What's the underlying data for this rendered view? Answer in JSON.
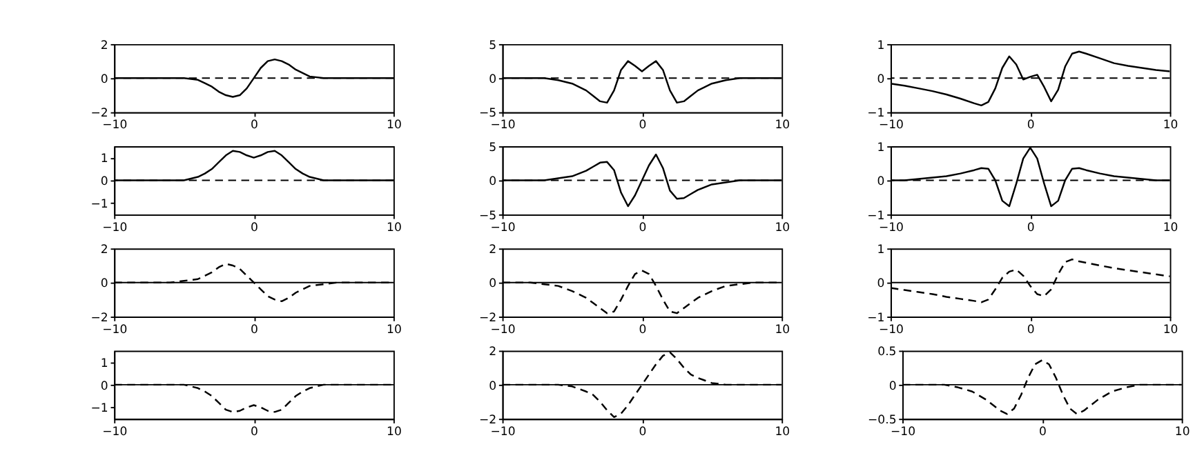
{
  "chart_data": [
    {
      "type": "line",
      "x": [
        -10,
        -9,
        -8,
        -7,
        -6,
        -5,
        -4,
        -3.5,
        -3,
        -2.5,
        -2,
        -1.5,
        -1,
        -0.5,
        0,
        0.5,
        1,
        1.5,
        2,
        2.5,
        3,
        3.5,
        4,
        5,
        6,
        7,
        8,
        9,
        10
      ],
      "series": [
        {
          "color": "#000000",
          "values": [
            0,
            0,
            0,
            0,
            0,
            0,
            -0.1,
            -0.3,
            -0.5,
            -0.8,
            -1.0,
            -1.1,
            -1.0,
            -0.6,
            0,
            0.6,
            1.0,
            1.1,
            1.0,
            0.8,
            0.5,
            0.3,
            0.1,
            0,
            0,
            0,
            0,
            0,
            0
          ]
        }
      ],
      "line_style": "solid",
      "xlim": [
        -10,
        10
      ],
      "xticks": [
        -10,
        0,
        10
      ],
      "ylim": [
        -2,
        2
      ],
      "yticks": [
        -2,
        0,
        2
      ],
      "ref_lines": [
        {
          "axis": "y",
          "value": 0,
          "color": "#000000",
          "line_style": "dashed"
        }
      ]
    },
    {
      "type": "line",
      "x": [
        -10,
        -9,
        -8,
        -7,
        -6,
        -5,
        -4,
        -3.5,
        -3,
        -2.5,
        -2,
        -1.5,
        -1,
        -0.5,
        0,
        0.5,
        1,
        1.5,
        2,
        2.5,
        3,
        3.5,
        4,
        5,
        6,
        7,
        8,
        9,
        10
      ],
      "series": [
        {
          "color": "#000000",
          "values": [
            0,
            0,
            0,
            0,
            -0.3,
            -0.8,
            -1.8,
            -2.6,
            -3.4,
            -3.6,
            -1.8,
            1.2,
            2.5,
            1.8,
            1.0,
            1.8,
            2.5,
            1.2,
            -1.8,
            -3.6,
            -3.4,
            -2.6,
            -1.8,
            -0.8,
            -0.3,
            0,
            0,
            0,
            0
          ]
        }
      ],
      "line_style": "solid",
      "xlim": [
        -10,
        10
      ],
      "xticks": [
        -10,
        0,
        10
      ],
      "ylim": [
        -5,
        5
      ],
      "yticks": [
        -5,
        0,
        5
      ],
      "ref_lines": [
        {
          "axis": "y",
          "value": 0,
          "color": "#000000",
          "line_style": "dashed"
        }
      ]
    },
    {
      "type": "line",
      "x": [
        -10,
        -9,
        -8,
        -7,
        -6,
        -5,
        -4,
        -3.5,
        -3,
        -2.5,
        -2,
        -1.5,
        -1,
        -0.5,
        0,
        0.5,
        1,
        1.5,
        2,
        2.5,
        3,
        3.5,
        4,
        5,
        6,
        7,
        8,
        9,
        10
      ],
      "series": [
        {
          "color": "#000000",
          "values": [
            -0.16,
            -0.22,
            -0.3,
            -0.38,
            -0.48,
            -0.6,
            -0.74,
            -0.8,
            -0.7,
            -0.3,
            0.3,
            0.64,
            0.4,
            -0.04,
            0.04,
            0.1,
            -0.26,
            -0.68,
            -0.34,
            0.34,
            0.72,
            0.78,
            0.72,
            0.58,
            0.44,
            0.36,
            0.3,
            0.24,
            0.2
          ]
        }
      ],
      "line_style": "solid",
      "xlim": [
        -10,
        10
      ],
      "xticks": [
        -10,
        0,
        10
      ],
      "ylim": [
        -1,
        1
      ],
      "yticks": [
        -1,
        0,
        1
      ],
      "ref_lines": [
        {
          "axis": "y",
          "value": 0,
          "color": "#000000",
          "line_style": "dashed"
        }
      ]
    },
    {
      "type": "line",
      "x": [
        -10,
        -9,
        -8,
        -7,
        -6,
        -5,
        -4,
        -3.5,
        -3,
        -2.5,
        -2,
        -1.5,
        -1,
        -0.5,
        0,
        0.5,
        1,
        1.5,
        2,
        2.5,
        3,
        3.5,
        4,
        5,
        6,
        7,
        8,
        9,
        10
      ],
      "series": [
        {
          "color": "#000000",
          "values": [
            0,
            0,
            0,
            0,
            0,
            0,
            0.15,
            0.3,
            0.5,
            0.8,
            1.1,
            1.3,
            1.25,
            1.1,
            1.0,
            1.1,
            1.25,
            1.3,
            1.1,
            0.8,
            0.5,
            0.3,
            0.15,
            0,
            0,
            0,
            0,
            0,
            0
          ]
        }
      ],
      "line_style": "solid",
      "xlim": [
        -10,
        10
      ],
      "xticks": [
        -10,
        0,
        10
      ],
      "ylim": [
        -1.5,
        1.5
      ],
      "yticks": [
        -1,
        0,
        1
      ],
      "ref_lines": [
        {
          "axis": "y",
          "value": 0,
          "color": "#000000",
          "line_style": "dashed"
        }
      ]
    },
    {
      "type": "line",
      "x": [
        -10,
        -9,
        -8,
        -7,
        -6,
        -5,
        -4,
        -3.5,
        -3,
        -2.5,
        -2,
        -1.5,
        -1,
        -0.5,
        0,
        0.5,
        1,
        1.5,
        2,
        2.5,
        3,
        3.5,
        4,
        5,
        6,
        7,
        8,
        9,
        10
      ],
      "series": [
        {
          "color": "#000000",
          "values": [
            0,
            0,
            0,
            0,
            0.3,
            0.6,
            1.4,
            2.0,
            2.6,
            2.7,
            1.5,
            -1.8,
            -3.8,
            -2.2,
            0,
            2.2,
            3.8,
            1.8,
            -1.5,
            -2.7,
            -2.6,
            -2.0,
            -1.4,
            -0.6,
            -0.3,
            0,
            0,
            0,
            0
          ]
        }
      ],
      "line_style": "solid",
      "xlim": [
        -10,
        10
      ],
      "xticks": [
        -10,
        0,
        10
      ],
      "ylim": [
        -5,
        5
      ],
      "yticks": [
        -5,
        0,
        5
      ],
      "ref_lines": [
        {
          "axis": "y",
          "value": 0,
          "color": "#000000",
          "line_style": "dashed"
        }
      ]
    },
    {
      "type": "line",
      "x": [
        -10,
        -9,
        -8,
        -7,
        -6,
        -5,
        -4,
        -3.5,
        -3,
        -2.5,
        -2,
        -1.5,
        -1,
        -0.5,
        0,
        0.5,
        1,
        1.5,
        2,
        2.5,
        3,
        3.5,
        4,
        5,
        6,
        7,
        8,
        9,
        10
      ],
      "series": [
        {
          "color": "#000000",
          "values": [
            0,
            0,
            0.04,
            0.08,
            0.12,
            0.2,
            0.3,
            0.36,
            0.34,
            0,
            -0.6,
            -0.76,
            -0.1,
            0.64,
            0.96,
            0.64,
            -0.1,
            -0.76,
            -0.6,
            0,
            0.34,
            0.36,
            0.3,
            0.2,
            0.12,
            0.08,
            0.04,
            0,
            0
          ]
        }
      ],
      "line_style": "solid",
      "xlim": [
        -10,
        10
      ],
      "xticks": [
        -10,
        0,
        10
      ],
      "ylim": [
        -1,
        1
      ],
      "yticks": [
        -1,
        0,
        1
      ],
      "ref_lines": [
        {
          "axis": "y",
          "value": 0,
          "color": "#000000",
          "line_style": "dashed"
        }
      ]
    },
    {
      "type": "line",
      "x": [
        -10,
        -9,
        -8,
        -7,
        -6,
        -5,
        -4,
        -3.5,
        -3,
        -2.5,
        -2,
        -1.5,
        -1,
        -0.5,
        0,
        0.5,
        1,
        1.5,
        2,
        2.5,
        3,
        3.5,
        4,
        5,
        6,
        7,
        8,
        9,
        10
      ],
      "series": [
        {
          "color": "#000000",
          "values": [
            0,
            0,
            0,
            0,
            0,
            0.1,
            0.2,
            0.4,
            0.6,
            0.9,
            1.1,
            1.0,
            0.8,
            0.4,
            0,
            -0.4,
            -0.8,
            -1.0,
            -1.1,
            -0.9,
            -0.6,
            -0.4,
            -0.2,
            -0.1,
            0,
            0,
            0,
            0,
            0
          ]
        }
      ],
      "line_style": "dashed",
      "xlim": [
        -10,
        10
      ],
      "xticks": [
        -10,
        0,
        10
      ],
      "ylim": [
        -2,
        2
      ],
      "yticks": [
        -2,
        0,
        2
      ],
      "ref_lines": [
        {
          "axis": "y",
          "value": 0,
          "color": "#000000",
          "line_style": "solid"
        }
      ]
    },
    {
      "type": "line",
      "x": [
        -10,
        -9,
        -8,
        -7,
        -6,
        -5,
        -4,
        -3.5,
        -3,
        -2.5,
        -2,
        -1.5,
        -1,
        -0.5,
        0,
        0.5,
        1,
        1.5,
        2,
        2.5,
        3,
        3.5,
        4,
        5,
        6,
        7,
        8,
        9,
        10
      ],
      "series": [
        {
          "color": "#000000",
          "values": [
            0,
            0,
            0,
            -0.1,
            -0.2,
            -0.5,
            -0.9,
            -1.2,
            -1.5,
            -1.8,
            -1.7,
            -1.0,
            -0.2,
            0.5,
            0.7,
            0.5,
            -0.2,
            -1.0,
            -1.7,
            -1.8,
            -1.5,
            -1.2,
            -0.9,
            -0.5,
            -0.2,
            -0.1,
            0,
            0,
            0
          ]
        }
      ],
      "line_style": "dashed",
      "xlim": [
        -10,
        10
      ],
      "xticks": [
        -10,
        0,
        10
      ],
      "ylim": [
        -2,
        2
      ],
      "yticks": [
        -2,
        0,
        2
      ],
      "ref_lines": [
        {
          "axis": "y",
          "value": 0,
          "color": "#000000",
          "line_style": "solid"
        }
      ]
    },
    {
      "type": "line",
      "x": [
        -10,
        -9,
        -8,
        -7,
        -6,
        -5,
        -4,
        -3.5,
        -3,
        -2.5,
        -2,
        -1.5,
        -1,
        -0.5,
        0,
        0.5,
        1,
        1.5,
        2,
        2.5,
        3,
        3.5,
        4,
        5,
        6,
        7,
        8,
        9,
        10
      ],
      "series": [
        {
          "color": "#000000",
          "values": [
            -0.16,
            -0.22,
            -0.28,
            -0.34,
            -0.42,
            -0.48,
            -0.54,
            -0.58,
            -0.5,
            -0.2,
            0.14,
            0.32,
            0.38,
            0.2,
            -0.1,
            -0.34,
            -0.4,
            -0.2,
            0.24,
            0.6,
            0.68,
            0.62,
            0.58,
            0.5,
            0.42,
            0.36,
            0.3,
            0.24,
            0.18
          ]
        }
      ],
      "line_style": "dashed",
      "xlim": [
        -10,
        10
      ],
      "xticks": [
        -10,
        0,
        10
      ],
      "ylim": [
        -1,
        1
      ],
      "yticks": [
        -1,
        0,
        1
      ],
      "ref_lines": [
        {
          "axis": "y",
          "value": 0,
          "color": "#000000",
          "line_style": "solid"
        }
      ]
    },
    {
      "type": "line",
      "x": [
        -10,
        -9,
        -8,
        -7,
        -6,
        -5,
        -4,
        -3.5,
        -3,
        -2.5,
        -2,
        -1.5,
        -1,
        -0.5,
        0,
        0.5,
        1,
        1.5,
        2,
        2.5,
        3,
        3.5,
        4,
        5,
        6,
        7,
        8,
        9,
        10
      ],
      "series": [
        {
          "color": "#000000",
          "values": [
            0,
            0,
            0,
            0,
            0,
            0,
            -0.15,
            -0.3,
            -0.5,
            -0.8,
            -1.1,
            -1.2,
            -1.15,
            -1.0,
            -0.9,
            -1.0,
            -1.15,
            -1.2,
            -1.1,
            -0.8,
            -0.5,
            -0.3,
            -0.15,
            0,
            0,
            0,
            0,
            0,
            0
          ]
        }
      ],
      "line_style": "dashed",
      "xlim": [
        -10,
        10
      ],
      "xticks": [
        -10,
        0,
        10
      ],
      "ylim": [
        -1.5,
        1.5
      ],
      "yticks": [
        -1,
        0,
        1
      ],
      "ref_lines": [
        {
          "axis": "y",
          "value": 0,
          "color": "#000000",
          "line_style": "solid"
        }
      ]
    },
    {
      "type": "line",
      "x": [
        -10,
        -9,
        -8,
        -7,
        -6,
        -5,
        -4,
        -3.5,
        -3,
        -2.5,
        -2,
        -1.5,
        -1,
        -0.5,
        0,
        0.5,
        1,
        1.5,
        2,
        2.5,
        3,
        3.5,
        4,
        5,
        6,
        7,
        8,
        9,
        10
      ],
      "series": [
        {
          "color": "#000000",
          "values": [
            0,
            0,
            0,
            0,
            0,
            -0.1,
            -0.4,
            -0.6,
            -1.0,
            -1.5,
            -1.9,
            -1.7,
            -1.2,
            -0.6,
            0,
            0.6,
            1.2,
            1.7,
            1.9,
            1.5,
            1.0,
            0.6,
            0.4,
            0.1,
            0,
            0,
            0,
            0,
            0
          ]
        }
      ],
      "line_style": "dashed",
      "xlim": [
        -10,
        10
      ],
      "xticks": [
        -10,
        0,
        10
      ],
      "ylim": [
        -2,
        2
      ],
      "yticks": [
        -2,
        0,
        2
      ],
      "ref_lines": [
        {
          "axis": "y",
          "value": 0,
          "color": "#000000",
          "line_style": "solid"
        }
      ]
    },
    {
      "type": "line",
      "x": [
        -10,
        -9,
        -8,
        -7,
        -6,
        -5,
        -4,
        -3.5,
        -3,
        -2.5,
        -2,
        -1.5,
        -1,
        -0.5,
        0,
        0.5,
        1,
        1.5,
        2,
        2.5,
        3,
        3.5,
        4,
        5,
        6,
        7,
        8,
        9,
        10
      ],
      "series": [
        {
          "color": "#000000",
          "values": [
            0,
            0,
            0,
            0,
            -0.04,
            -0.1,
            -0.22,
            -0.3,
            -0.38,
            -0.43,
            -0.35,
            -0.15,
            0.1,
            0.3,
            0.36,
            0.3,
            0.1,
            -0.15,
            -0.35,
            -0.43,
            -0.38,
            -0.3,
            -0.22,
            -0.1,
            -0.04,
            0,
            0,
            0,
            0
          ]
        }
      ],
      "line_style": "dashed",
      "xlim": [
        -10,
        10
      ],
      "xticks": [
        -10,
        0,
        10
      ],
      "ylim": [
        -0.5,
        0.5
      ],
      "yticks": [
        -0.5,
        0,
        0.5
      ],
      "ref_lines": [
        {
          "axis": "y",
          "value": 0,
          "color": "#000000",
          "line_style": "solid"
        }
      ]
    }
  ]
}
